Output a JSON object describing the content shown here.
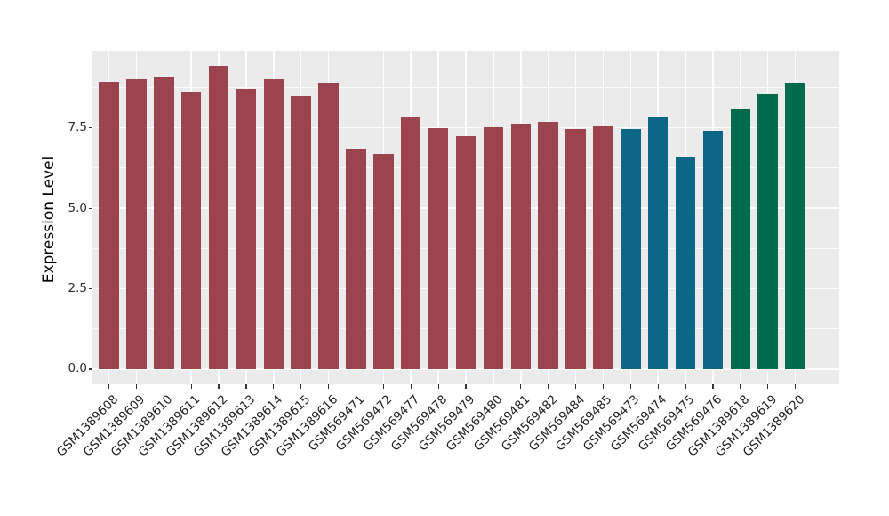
{
  "chart_data": {
    "type": "bar",
    "title": "",
    "xlabel": "",
    "ylabel": "Expression Level",
    "categories": [
      "GSM1389608",
      "GSM1389609",
      "GSM1389610",
      "GSM1389611",
      "GSM1389612",
      "GSM1389613",
      "GSM1389614",
      "GSM1389615",
      "GSM1389616",
      "GSM569471",
      "GSM569472",
      "GSM569477",
      "GSM569478",
      "GSM569479",
      "GSM569480",
      "GSM569481",
      "GSM569482",
      "GSM569484",
      "GSM569485",
      "GSM569473",
      "GSM569474",
      "GSM569475",
      "GSM569476",
      "GSM1389618",
      "GSM1389619",
      "GSM1389620"
    ],
    "values": [
      8.93,
      9.01,
      9.07,
      8.63,
      9.42,
      8.7,
      9.0,
      8.47,
      8.89,
      6.81,
      6.69,
      7.85,
      7.48,
      7.25,
      7.52,
      7.62,
      7.69,
      7.46,
      7.54,
      7.46,
      7.83,
      6.6,
      7.41,
      8.07,
      8.53,
      8.89
    ],
    "groups": [
      "maroon",
      "maroon",
      "maroon",
      "maroon",
      "maroon",
      "maroon",
      "maroon",
      "maroon",
      "maroon",
      "maroon",
      "maroon",
      "maroon",
      "maroon",
      "maroon",
      "maroon",
      "maroon",
      "maroon",
      "maroon",
      "maroon",
      "blue",
      "blue",
      "blue",
      "blue",
      "green",
      "green",
      "green"
    ],
    "group_colors": {
      "maroon": "#9B4450",
      "blue": "#0C6787",
      "green": "#006B4C"
    },
    "yticks": [
      0,
      2.5,
      5,
      7.5
    ],
    "ytick_labels": [
      "0.0",
      "2.5",
      "5.0",
      "7.5"
    ],
    "minor_gridlines": [
      1.25,
      3.75,
      6.25,
      8.75
    ],
    "ylim": [
      -0.47,
      9.89
    ],
    "bar_width_fraction": 0.727,
    "panel_background": "#EBEBEB",
    "gridline_color": "#FFFFFF",
    "grid": "on",
    "legend": "none"
  }
}
